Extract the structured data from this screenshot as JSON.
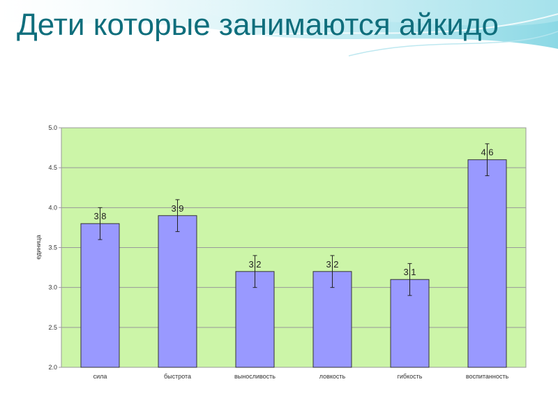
{
  "slide": {
    "title": "Дети которые занимаются айкидо"
  },
  "colors": {
    "title": "#0f6e7c",
    "plot_background": "#ccf5a8",
    "bar_fill": "#9999ff",
    "bar_stroke": "#333333",
    "gridline": "#999999",
    "error_bar": "#222222"
  },
  "chart_data": {
    "type": "bar",
    "categories": [
      "сила",
      "быстрота",
      "выносливость",
      "ловкость",
      "гибкость",
      "воспитанность"
    ],
    "values": [
      3.8,
      3.9,
      3.2,
      3.2,
      3.1,
      4.6
    ],
    "value_labels": [
      "3,8",
      "3,9",
      "3,2",
      "3,2",
      "3,1",
      "4,6"
    ],
    "error_low": [
      3.6,
      3.7,
      3.0,
      3.0,
      2.9,
      4.4
    ],
    "error_high": [
      4.0,
      4.1,
      3.4,
      3.4,
      3.3,
      4.8
    ],
    "ylabel": "единица",
    "ylim": [
      2.0,
      5.0
    ],
    "yticks": [
      2.0,
      2.5,
      3.0,
      3.5,
      4.0,
      4.5,
      5.0
    ],
    "ytick_labels": [
      "2.0",
      "2.5",
      "3.0",
      "3.5",
      "4.0",
      "4.5",
      "5.0"
    ],
    "grid": true,
    "legend": false
  }
}
